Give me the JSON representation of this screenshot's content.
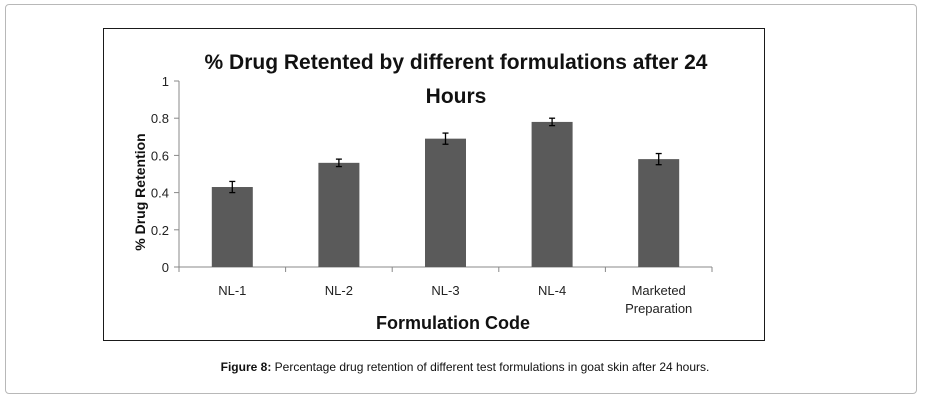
{
  "caption": {
    "label": "Figure 8:",
    "text": " Percentage drug retention of different test formulations in goat skin after 24 hours."
  },
  "chart_data": {
    "type": "bar",
    "title": "% Drug Retented by different formulations after 24 Hours",
    "title_lines": [
      "% Drug Retented by different formulations after 24",
      "Hours"
    ],
    "xlabel": "Formulation Code",
    "ylabel": "% Drug Retention",
    "categories": [
      "NL-1",
      "NL-2",
      "NL-3",
      "NL-4",
      "Marketed Preparation"
    ],
    "category_lines": [
      [
        "NL-1"
      ],
      [
        "NL-2"
      ],
      [
        "NL-3"
      ],
      [
        "NL-4"
      ],
      [
        "Marketed",
        "Preparation"
      ]
    ],
    "values": [
      0.43,
      0.56,
      0.69,
      0.78,
      0.58
    ],
    "error": [
      0.03,
      0.02,
      0.03,
      0.02,
      0.03
    ],
    "ylim": [
      0,
      1
    ],
    "yticks": [
      "0",
      "0.2",
      "0.4",
      "0.6",
      "0.8",
      "1"
    ],
    "grid": false,
    "bar_color": "#5a5a5a"
  }
}
